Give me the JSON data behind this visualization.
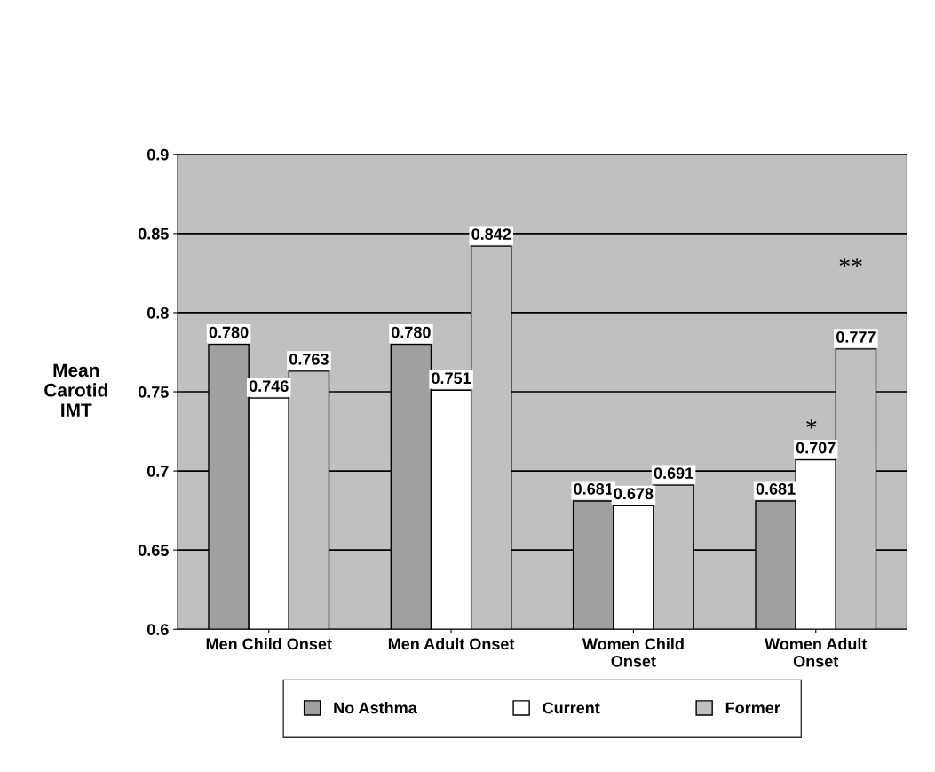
{
  "chart_data": {
    "type": "bar",
    "ylabel": "Mean\nCarotid\nIMT",
    "categories": [
      "Men Child Onset",
      "Men Adult Onset",
      "Women Child\nOnset",
      "Women Adult\nOnset"
    ],
    "series": [
      {
        "name": "No Asthma",
        "color": "#a0a0a0",
        "values": [
          0.78,
          0.78,
          0.681,
          0.681
        ],
        "value_labels": [
          "0.780",
          "0.780",
          "0.681",
          "0.681"
        ]
      },
      {
        "name": "Current",
        "color": "#ffffff",
        "values": [
          0.746,
          0.751,
          0.678,
          0.707
        ],
        "value_labels": [
          "0.746",
          "0.751",
          "0.678",
          "0.707"
        ]
      },
      {
        "name": "Former",
        "color": "#c0c0c0",
        "values": [
          0.763,
          0.842,
          0.691,
          0.777
        ],
        "value_labels": [
          "0.763",
          "0.842",
          "0.691",
          "0.777"
        ]
      }
    ],
    "ylim": [
      0.6,
      0.9
    ],
    "yticks": [
      0.6,
      0.65,
      0.7,
      0.75,
      0.8,
      0.85,
      0.9
    ],
    "grid": "y",
    "legend": "bottom",
    "annotations": [
      "*",
      "**"
    ]
  }
}
